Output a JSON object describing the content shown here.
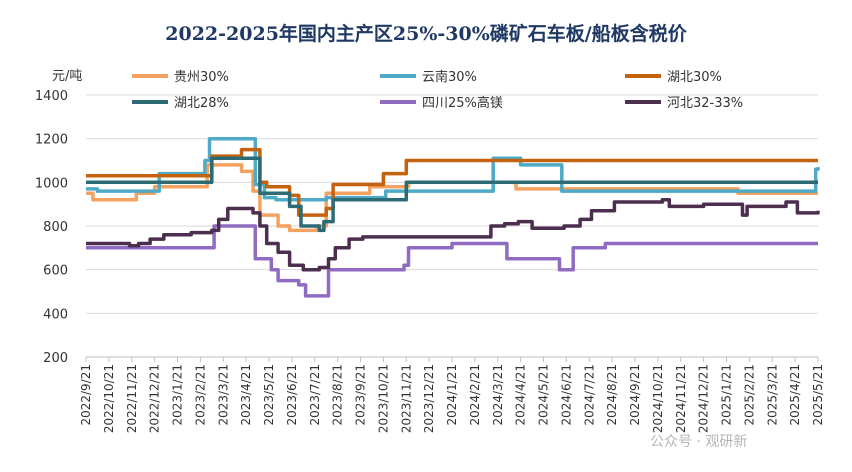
{
  "chart_data": {
    "type": "line",
    "title": "2022-2025年国内主产区25%-30%磷矿石车板/船板含税价",
    "ylabel": "元/吨",
    "ylim": [
      200,
      1400
    ],
    "yticks": [
      200,
      400,
      600,
      800,
      1000,
      1200,
      1400
    ],
    "grid": "horizontal",
    "legend_position": "top",
    "x": [
      "2022/9/21",
      "2022/10/21",
      "2022/11/21",
      "2022/12/21",
      "2023/1/21",
      "2023/2/21",
      "2023/3/21",
      "2023/4/21",
      "2023/5/21",
      "2023/6/21",
      "2023/7/21",
      "2023/8/21",
      "2023/9/21",
      "2023/10/21",
      "2023/11/21",
      "2023/12/21",
      "2024/1/21",
      "2024/2/21",
      "2024/3/21",
      "2024/4/21",
      "2024/5/21",
      "2024/6/21",
      "2024/7/21",
      "2024/8/21",
      "2024/9/21",
      "2024/10/21",
      "2024/11/21",
      "2024/12/21",
      "2025/1/21",
      "2025/2/21",
      "2025/3/21",
      "2025/4/21",
      "2025/5/21"
    ],
    "series": [
      {
        "name": "贵州30%",
        "color": "#f4a261",
        "points": [
          [
            0,
            950
          ],
          [
            0.3,
            920
          ],
          [
            2.2,
            950
          ],
          [
            3,
            980
          ],
          [
            5.3,
            1080
          ],
          [
            6.5,
            1080
          ],
          [
            6.8,
            1050
          ],
          [
            7.3,
            960
          ],
          [
            7.6,
            850
          ],
          [
            8.2,
            850
          ],
          [
            8.4,
            800
          ],
          [
            8.9,
            780
          ],
          [
            9.9,
            780
          ],
          [
            10.1,
            800
          ],
          [
            10.5,
            950
          ],
          [
            12.1,
            950
          ],
          [
            12.4,
            980
          ],
          [
            13.9,
            980
          ],
          [
            14.1,
            1000
          ],
          [
            18.6,
            1000
          ],
          [
            18.8,
            970
          ],
          [
            28.5,
            950
          ],
          [
            32,
            950
          ]
        ]
      },
      {
        "name": "云南30%",
        "color": "#4eaac6",
        "points": [
          [
            0,
            970
          ],
          [
            0.5,
            960
          ],
          [
            2.8,
            960
          ],
          [
            3.2,
            1040
          ],
          [
            4.6,
            1040
          ],
          [
            5.2,
            1100
          ],
          [
            5.4,
            1200
          ],
          [
            7.1,
            1200
          ],
          [
            7.4,
            990
          ],
          [
            7.8,
            930
          ],
          [
            8.1,
            930
          ],
          [
            8.3,
            920
          ],
          [
            10.1,
            920
          ],
          [
            10.5,
            930
          ],
          [
            12.8,
            930
          ],
          [
            13.1,
            960
          ],
          [
            17.6,
            960
          ],
          [
            17.8,
            1110
          ],
          [
            18.6,
            1110
          ],
          [
            19,
            1080
          ],
          [
            20.6,
            1080
          ],
          [
            20.8,
            960
          ],
          [
            31.8,
            960
          ],
          [
            31.9,
            1060
          ],
          [
            32,
            1070
          ]
        ]
      },
      {
        "name": "湖北30%",
        "color": "#c5620d",
        "points": [
          [
            0,
            1030
          ],
          [
            5.4,
            1030
          ],
          [
            5.5,
            1120
          ],
          [
            6.6,
            1120
          ],
          [
            6.8,
            1150
          ],
          [
            7.5,
            1150
          ],
          [
            7.6,
            1000
          ],
          [
            7.9,
            980
          ],
          [
            8.6,
            980
          ],
          [
            8.9,
            940
          ],
          [
            9.3,
            850
          ],
          [
            10.3,
            850
          ],
          [
            10.5,
            880
          ],
          [
            10.8,
            990
          ],
          [
            12.9,
            990
          ],
          [
            13,
            1040
          ],
          [
            13.8,
            1040
          ],
          [
            14,
            1100
          ],
          [
            32,
            1100
          ]
        ]
      },
      {
        "name": "湖北28%",
        "color": "#2c6b74",
        "points": [
          [
            0,
            1000
          ],
          [
            5.4,
            1000
          ],
          [
            5.5,
            1110
          ],
          [
            7.3,
            1110
          ],
          [
            7.6,
            950
          ],
          [
            8.4,
            950
          ],
          [
            8.9,
            890
          ],
          [
            9.4,
            800
          ],
          [
            10.2,
            780
          ],
          [
            10.4,
            820
          ],
          [
            10.8,
            920
          ],
          [
            13.9,
            920
          ],
          [
            14,
            1000
          ],
          [
            32,
            1000
          ]
        ]
      },
      {
        "name": "四川25%高镁",
        "color": "#8f6cc2",
        "points": [
          [
            0,
            700
          ],
          [
            5.5,
            700
          ],
          [
            5.6,
            800
          ],
          [
            7.2,
            800
          ],
          [
            7.4,
            650
          ],
          [
            8.1,
            600
          ],
          [
            8.4,
            550
          ],
          [
            9.3,
            530
          ],
          [
            9.6,
            480
          ],
          [
            10.3,
            480
          ],
          [
            10.6,
            600
          ],
          [
            13.9,
            620
          ],
          [
            14.1,
            700
          ],
          [
            16,
            720
          ],
          [
            18.3,
            720
          ],
          [
            18.4,
            650
          ],
          [
            20.3,
            650
          ],
          [
            20.7,
            600
          ],
          [
            21.3,
            700
          ],
          [
            22.5,
            700
          ],
          [
            22.7,
            720
          ],
          [
            32,
            720
          ]
        ]
      },
      {
        "name": "河北32-33%",
        "color": "#4c2f4f",
        "points": [
          [
            0,
            720
          ],
          [
            1.9,
            710
          ],
          [
            2.3,
            720
          ],
          [
            2.8,
            740
          ],
          [
            3.4,
            760
          ],
          [
            4.6,
            770
          ],
          [
            5.5,
            780
          ],
          [
            5.8,
            830
          ],
          [
            6.2,
            880
          ],
          [
            7,
            880
          ],
          [
            7.3,
            860
          ],
          [
            7.6,
            800
          ],
          [
            7.9,
            720
          ],
          [
            8.4,
            680
          ],
          [
            8.9,
            620
          ],
          [
            9.5,
            600
          ],
          [
            10.2,
            610
          ],
          [
            10.6,
            650
          ],
          [
            10.9,
            700
          ],
          [
            11.5,
            740
          ],
          [
            12.1,
            750
          ],
          [
            17.6,
            750
          ],
          [
            17.7,
            800
          ],
          [
            18.3,
            810
          ],
          [
            18.9,
            820
          ],
          [
            19.5,
            790
          ],
          [
            20.3,
            790
          ],
          [
            20.9,
            800
          ],
          [
            21.6,
            830
          ],
          [
            22.1,
            870
          ],
          [
            23.1,
            910
          ],
          [
            25.2,
            920
          ],
          [
            25.5,
            890
          ],
          [
            27,
            900
          ],
          [
            28.6,
            900
          ],
          [
            28.7,
            850
          ],
          [
            28.9,
            890
          ],
          [
            30.2,
            890
          ],
          [
            30.6,
            910
          ],
          [
            31.1,
            860
          ],
          [
            32,
            870
          ]
        ]
      }
    ]
  },
  "watermark": "公众号 · 观研新"
}
